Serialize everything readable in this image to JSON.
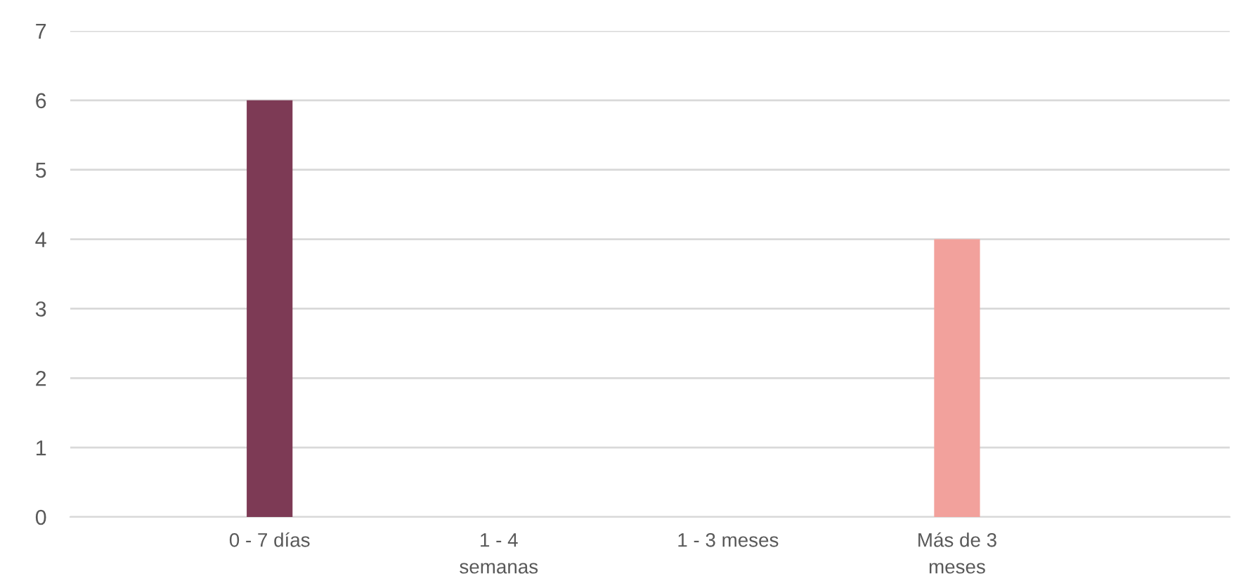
{
  "chart_data": {
    "type": "bar",
    "categories": [
      "0 - 7 días",
      "1 - 4\nsemanas",
      "1 - 3 meses",
      "Más de 3\nmeses"
    ],
    "values": [
      6,
      0,
      0,
      4
    ],
    "colors": [
      "#7d3a55",
      "#a65a6e",
      "#d47f86",
      "#f2a19c"
    ],
    "ylim": [
      0,
      7
    ],
    "yticks": [
      0,
      1,
      2,
      3,
      4,
      5,
      6,
      7
    ],
    "grid": "y",
    "legend": false
  }
}
